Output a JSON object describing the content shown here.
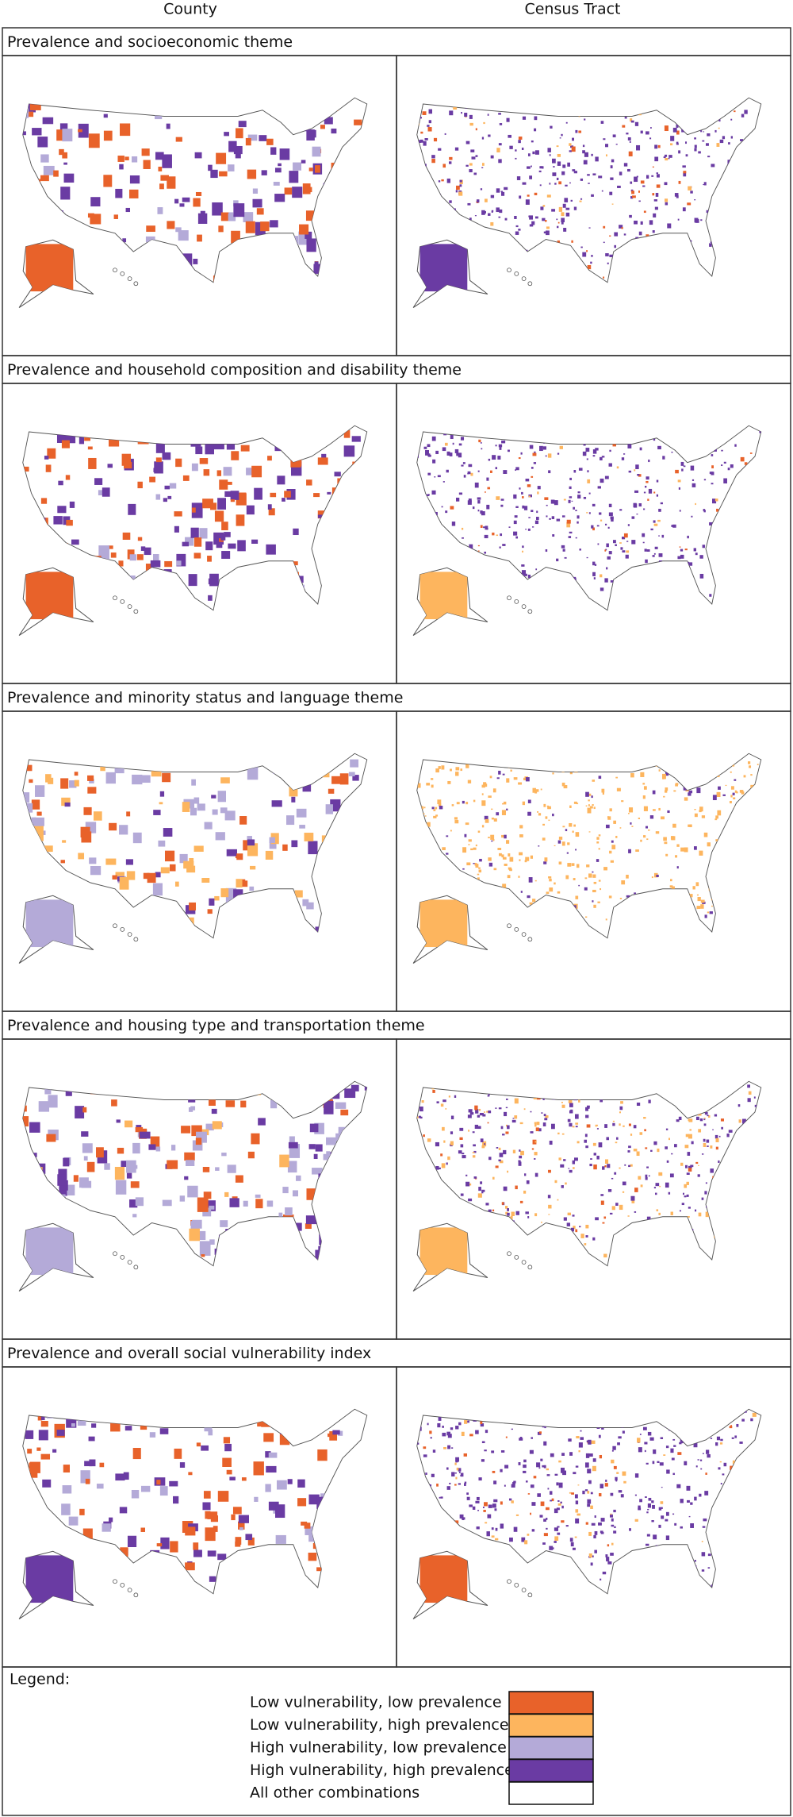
{
  "columns": [
    "County",
    "Census Tract"
  ],
  "rows": [
    {
      "title": "Prevalence and socioeconomic theme"
    },
    {
      "title": "Prevalence and household composition and disability theme"
    },
    {
      "title": "Prevalence and minority status and language theme"
    },
    {
      "title": "Prevalence and housing type and transportation theme"
    },
    {
      "title": "Prevalence and overall social vulnerability index"
    }
  ],
  "legend": {
    "title": "Legend:",
    "items": [
      {
        "label": "Low vulnerability, low prevalence",
        "color": "#e8622a"
      },
      {
        "label": "Low vulnerability, high prevalence",
        "color": "#fdb55e"
      },
      {
        "label": "High vulnerability, low prevalence",
        "color": "#b4aad8"
      },
      {
        "label": "High vulnerability, high prevalence",
        "color": "#6a3ba3"
      },
      {
        "label": "All other combinations",
        "color": "#ffffff"
      }
    ]
  }
}
